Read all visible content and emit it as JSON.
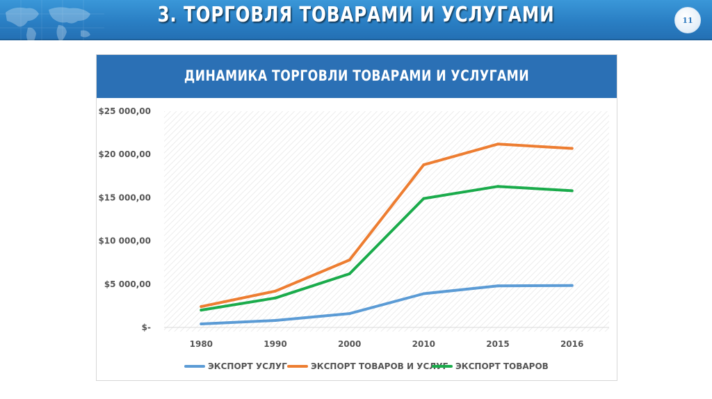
{
  "header": {
    "title": "3. ТОРГОВЛЯ ТОВАРАМИ И УСЛУГАМИ",
    "page_number": "11"
  },
  "colors": {
    "banner": "#2a7fc4",
    "panel_header": "#2b70b5",
    "series_services": "#5b9bd5",
    "series_goods_services": "#ed7d31",
    "series_goods": "#1aab4b"
  },
  "chart_data": {
    "type": "line",
    "title": "ДИНАМИКА ТОРГОВЛИ ТОВАРАМИ И УСЛУГАМИ",
    "xlabel": "",
    "ylabel": "",
    "categories": [
      "1980",
      "1990",
      "2000",
      "2010",
      "2015",
      "2016"
    ],
    "ylim": [
      0,
      25000
    ],
    "y_ticks": [
      0,
      5000,
      10000,
      15000,
      20000,
      25000
    ],
    "y_tick_labels": [
      "$-",
      "$5 000,00",
      "$10 000,00",
      "$15 000,00",
      "$20 000,00",
      "$25 000,00"
    ],
    "grid": false,
    "legend_position": "bottom",
    "series": [
      {
        "name": "ЭКСПОРТ УСЛУГ",
        "color": "#5b9bd5",
        "values": [
          400,
          800,
          1600,
          3900,
          4800,
          4850
        ]
      },
      {
        "name": "ЭКСПОРТ ТОВАРОВ И УСЛУГ",
        "color": "#ed7d31",
        "values": [
          2400,
          4200,
          7800,
          18800,
          21200,
          20700
        ]
      },
      {
        "name": "ЭКСПОРТ ТОВАРОВ",
        "color": "#1aab4b",
        "values": [
          2000,
          3400,
          6200,
          14900,
          16300,
          15800
        ]
      }
    ]
  }
}
